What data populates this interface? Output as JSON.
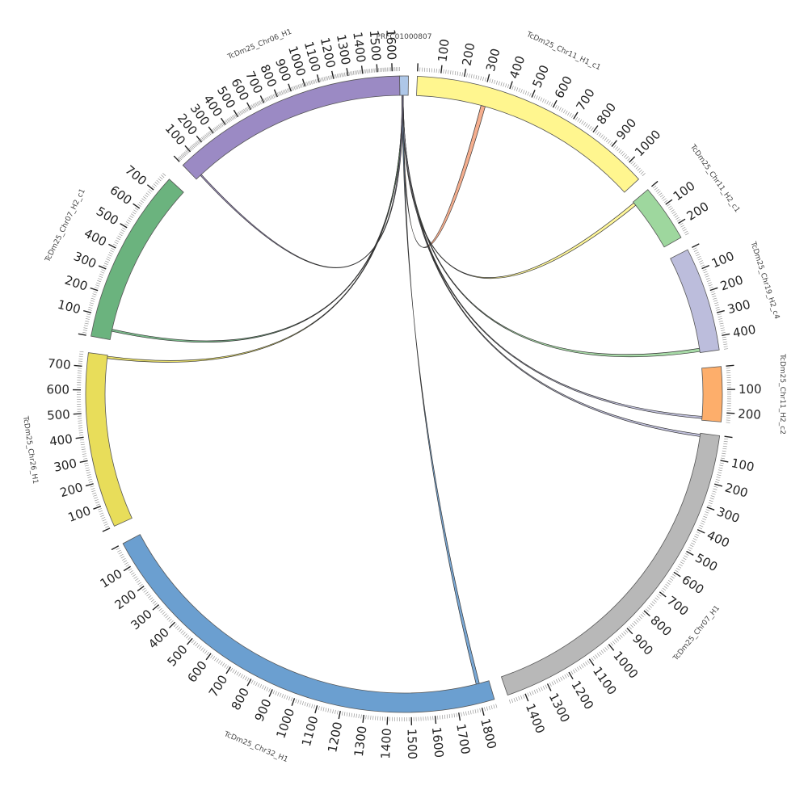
{
  "chart_data": {
    "type": "circos",
    "segments": [
      {
        "name": "PRFC01000807",
        "length": 15,
        "color": "#aec7e8",
        "tick_labels": []
      },
      {
        "name": "TcDm25_Chr11_H1_c1",
        "length": 1080,
        "color": "#fff68f",
        "tick_labels": [
          "100",
          "200",
          "300",
          "400",
          "500",
          "600",
          "700",
          "800",
          "900",
          "1000"
        ]
      },
      {
        "name": "TcDm25_Chr11_H2_c1",
        "length": 260,
        "color": "#9ed79e",
        "tick_labels": [
          "100",
          "200"
        ]
      },
      {
        "name": "TcDm25_Chr19_H2_c4",
        "length": 460,
        "color": "#bcbddc",
        "tick_labels": [
          "100",
          "200",
          "300",
          "400"
        ]
      },
      {
        "name": "TcDm25_Chr11_H2_c2",
        "length": 240,
        "color": "#fdae6b",
        "tick_labels": [
          "100",
          "200"
        ]
      },
      {
        "name": "TcDm25_Chr07_H1",
        "length": 1470,
        "color": "#b8b8b8",
        "tick_labels": [
          "100",
          "200",
          "300",
          "400",
          "500",
          "600",
          "700",
          "800",
          "900",
          "1000",
          "1100",
          "1200",
          "1300",
          "1400"
        ]
      },
      {
        "name": "TcDm25_Chr32_H1",
        "length": 1860,
        "color": "#6b9fd0",
        "tick_labels": [
          "100",
          "200",
          "300",
          "400",
          "500",
          "600",
          "700",
          "800",
          "900",
          "1000",
          "1100",
          "1200",
          "1300",
          "1400",
          "1500",
          "1600",
          "1700",
          "1800"
        ],
        "reversed": true
      },
      {
        "name": "TcDm25_Chr26_H1",
        "length": 760,
        "color": "#e8dd5a",
        "tick_labels": [
          "100",
          "200",
          "300",
          "400",
          "500",
          "600",
          "700"
        ]
      },
      {
        "name": "TcDm25_Chr07_H2_c1",
        "length": 780,
        "color": "#6bb37e",
        "tick_labels": [
          "100",
          "200",
          "300",
          "400",
          "500",
          "600",
          "700"
        ]
      },
      {
        "name": "TcDm25_Chr06_H1",
        "length": 1650,
        "color": "#9b8ac4",
        "tick_labels": [
          "100",
          "200",
          "300",
          "400",
          "500",
          "600",
          "700",
          "800",
          "900",
          "1000",
          "1100",
          "1200",
          "1300",
          "1400",
          "1500",
          "1600"
        ]
      }
    ],
    "links": [
      {
        "from": "PRFC01000807",
        "from_pos": [
          4,
          6
        ],
        "to": "TcDm25_Chr11_H1_c1",
        "to_pos": [
          300,
          320
        ],
        "color": "#f4a582"
      },
      {
        "from": "PRFC01000807",
        "from_pos": [
          4,
          6
        ],
        "to": "TcDm25_Chr11_H2_c1",
        "to_pos": [
          5,
          20
        ],
        "color": "#fff68f"
      },
      {
        "from": "PRFC01000807",
        "from_pos": [
          4,
          6
        ],
        "to": "TcDm25_Chr19_H2_c4",
        "to_pos": [
          440,
          455
        ],
        "color": "#9ed79e"
      },
      {
        "from": "PRFC01000807",
        "from_pos": [
          4,
          6
        ],
        "to": "TcDm25_Chr11_H2_c2",
        "to_pos": [
          222,
          232
        ],
        "color": "#bcbddc"
      },
      {
        "from": "PRFC01000807",
        "from_pos": [
          4,
          6
        ],
        "to": "TcDm25_Chr07_H1",
        "to_pos": [
          5,
          15
        ],
        "color": "#bcbddc"
      },
      {
        "from": "PRFC01000807",
        "from_pos": [
          4,
          6
        ],
        "to": "TcDm25_Chr32_H1",
        "to_pos": [
          1800,
          1815
        ],
        "color": "#6b9fd0"
      },
      {
        "from": "PRFC01000807",
        "from_pos": [
          4,
          6
        ],
        "to": "TcDm25_Chr26_H1",
        "to_pos": [
          745,
          755
        ],
        "color": "#e8dd5a"
      },
      {
        "from": "PRFC01000807",
        "from_pos": [
          4,
          6
        ],
        "to": "TcDm25_Chr07_H2_c1",
        "to_pos": [
          40,
          50
        ],
        "color": "#6bb37e"
      },
      {
        "from": "PRFC01000807",
        "from_pos": [
          4,
          6
        ],
        "to": "TcDm25_Chr06_H1",
        "to_pos": [
          40,
          50
        ],
        "color": "#9b8ac4"
      }
    ]
  }
}
